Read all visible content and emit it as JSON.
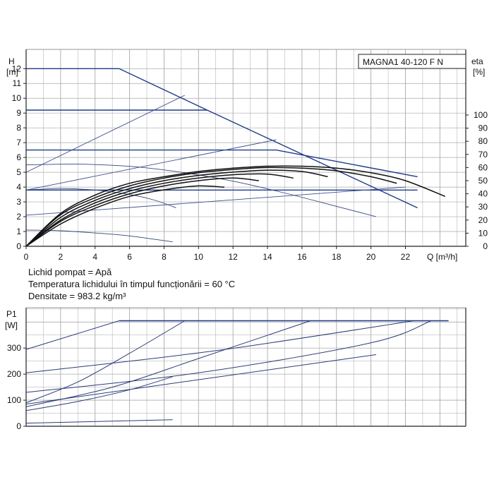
{
  "model_label": "MAGNA1 40-120 F N",
  "upper": {
    "y_label_1": "H",
    "y_label_2": "[m]",
    "right_label_1": "eta",
    "right_label_2": "[%]",
    "x_label": "Q [m³/h]",
    "x_ticks": [
      "0",
      "2",
      "4",
      "6",
      "8",
      "10",
      "12",
      "14",
      "16",
      "18",
      "20",
      "22"
    ],
    "y_ticks": [
      "0",
      "1",
      "2",
      "3",
      "4",
      "5",
      "6",
      "7",
      "8",
      "9",
      "10",
      "11",
      "12"
    ],
    "eta_ticks": [
      "0",
      "10",
      "20",
      "30",
      "40",
      "50",
      "60",
      "70",
      "80",
      "90",
      "100"
    ]
  },
  "info_lines": [
    "Lichid pompat = Apă",
    "Temperatura lichidului în timpul funcționării = 60 °C",
    "Densitate = 983.2 kg/m³"
  ],
  "lower": {
    "y_label_1": "P1",
    "y_label_2": "[W]",
    "y_ticks": [
      "0",
      "100",
      "200",
      "300"
    ]
  },
  "chart_data": [
    {
      "type": "line",
      "title": "MAGNA1 40-120 F N",
      "xlabel": "Q [m³/h]",
      "ylabel": "H [m]",
      "y2label": "eta [%]",
      "xlim": [
        0,
        25.5
      ],
      "ylim": [
        0,
        13.3
      ],
      "y2lim": [
        0,
        100
      ],
      "grid": true,
      "series": [
        {
          "role": "head",
          "x": [
            0,
            5.4,
            10.5,
            22.7
          ],
          "y": [
            12,
            12,
            9.2,
            2.6
          ]
        },
        {
          "role": "head",
          "x": [
            0,
            10.5
          ],
          "y": [
            9.2,
            9.2
          ]
        },
        {
          "role": "head",
          "x": [
            0,
            14.5,
            22.7
          ],
          "y": [
            6.5,
            6.5,
            4.7
          ]
        },
        {
          "role": "head",
          "x": [
            0,
            22.7
          ],
          "y": [
            3.8,
            3.8
          ]
        },
        {
          "role": "proportional",
          "x": [
            0,
            9.2
          ],
          "y": [
            5.0,
            10.2
          ]
        },
        {
          "role": "proportional",
          "x": [
            0,
            14.5
          ],
          "y": [
            3.8,
            7.2
          ]
        },
        {
          "role": "proportional",
          "x": [
            0,
            22.0
          ],
          "y": [
            2.1,
            4.0
          ]
        },
        {
          "role": "constant-speed",
          "x": [
            0,
            3,
            6,
            9,
            12,
            15,
            18,
            20.3
          ],
          "y": [
            5.5,
            5.55,
            5.4,
            5.0,
            4.4,
            3.6,
            2.7,
            2.0
          ]
        },
        {
          "role": "constant-speed",
          "x": [
            0,
            2,
            4,
            6,
            7.5,
            8.7
          ],
          "y": [
            3.8,
            3.9,
            3.8,
            3.5,
            3.1,
            2.6
          ]
        },
        {
          "role": "constant-speed",
          "x": [
            0,
            2,
            4,
            6,
            8.5
          ],
          "y": [
            1.1,
            1.05,
            0.9,
            0.7,
            0.3
          ]
        },
        {
          "role": "efficiency",
          "x": [
            0,
            2,
            4,
            6,
            8,
            10,
            12,
            14,
            16,
            18,
            20,
            22,
            24.3
          ],
          "y": [
            0,
            25,
            39,
            48,
            53,
            57,
            59.5,
            61,
            61,
            59.5,
            56,
            50,
            38
          ]
        },
        {
          "role": "efficiency",
          "x": [
            0,
            2,
            4,
            6,
            8,
            10,
            12,
            14,
            16,
            18,
            20,
            21.5
          ],
          "y": [
            0,
            24,
            37,
            46,
            52,
            56,
            58.5,
            60,
            59.5,
            57.5,
            53,
            48
          ]
        },
        {
          "role": "efficiency",
          "x": [
            0,
            2,
            4,
            6,
            8,
            10,
            12,
            14,
            16,
            17.5
          ],
          "y": [
            0,
            22,
            35,
            44,
            50,
            54,
            56.5,
            58,
            57,
            53
          ]
        },
        {
          "role": "efficiency",
          "x": [
            0,
            2,
            4,
            6,
            8,
            10,
            12,
            14,
            15.5
          ],
          "y": [
            0,
            20,
            33,
            42,
            48,
            52,
            54.5,
            55,
            52
          ]
        },
        {
          "role": "efficiency",
          "x": [
            0,
            2,
            4,
            6,
            8,
            10,
            12,
            13.5
          ],
          "y": [
            0,
            19,
            31,
            40,
            46,
            50,
            52,
            50
          ]
        },
        {
          "role": "efficiency",
          "x": [
            0,
            2,
            4,
            6,
            8,
            10,
            11.5
          ],
          "y": [
            0,
            17,
            29,
            38,
            43,
            46,
            45
          ]
        }
      ]
    },
    {
      "type": "line",
      "xlabel": "",
      "ylabel": "P1 [W]",
      "xlim": [
        0,
        25.5
      ],
      "ylim": [
        0,
        455
      ],
      "grid": true,
      "series": [
        {
          "role": "power-limit",
          "x": [
            5.4,
            24.5
          ],
          "y": [
            405,
            405
          ]
        },
        {
          "role": "power",
          "x": [
            0,
            5.4
          ],
          "y": [
            295,
            405
          ]
        },
        {
          "role": "power",
          "x": [
            0,
            11,
            22.5
          ],
          "y": [
            205,
            290,
            405
          ]
        },
        {
          "role": "power",
          "x": [
            0,
            10,
            20,
            23.5
          ],
          "y": [
            130,
            205,
            320,
            405
          ]
        },
        {
          "role": "power",
          "x": [
            0,
            20.3
          ],
          "y": [
            85,
            275
          ]
        },
        {
          "role": "power",
          "x": [
            0,
            5,
            10,
            16.5
          ],
          "y": [
            75,
            150,
            260,
            405
          ]
        },
        {
          "role": "power",
          "x": [
            0,
            3,
            6,
            9.2
          ],
          "y": [
            90,
            170,
            280,
            405
          ]
        },
        {
          "role": "power",
          "x": [
            0,
            3,
            6,
            8.5
          ],
          "y": [
            60,
            95,
            140,
            190
          ]
        },
        {
          "role": "power",
          "x": [
            0,
            8.5
          ],
          "y": [
            12,
            25
          ]
        }
      ]
    }
  ]
}
